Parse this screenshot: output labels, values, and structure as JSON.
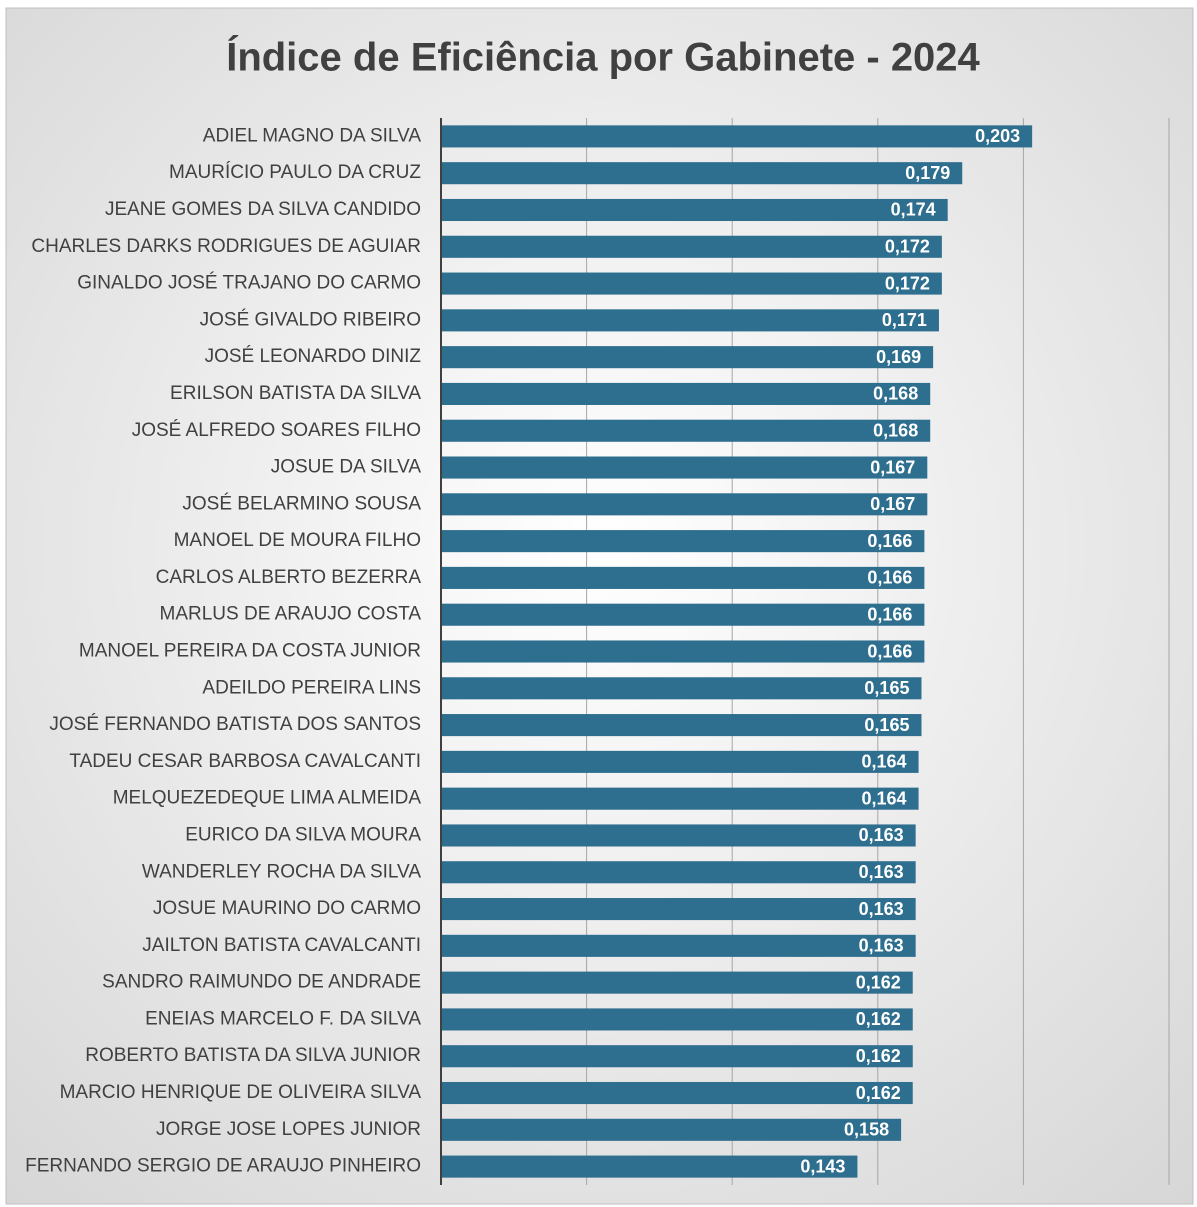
{
  "chart_data": {
    "type": "barh",
    "title": "Índice de Eficiência por Gabinete - 2024",
    "categories": [
      "ADIEL MAGNO DA SILVA",
      "MAURÍCIO PAULO DA CRUZ",
      "JEANE GOMES DA SILVA CANDIDO",
      "CHARLES DARKS RODRIGUES DE AGUIAR",
      "GINALDO JOSÉ TRAJANO DO CARMO",
      "JOSÉ GIVALDO RIBEIRO",
      "JOSÉ LEONARDO DINIZ",
      "ERILSON BATISTA DA SILVA",
      "JOSÉ ALFREDO SOARES FILHO",
      "JOSUE DA SILVA",
      "JOSÉ BELARMINO SOUSA",
      "MANOEL DE MOURA FILHO",
      "CARLOS ALBERTO BEZERRA",
      "MARLUS DE ARAUJO COSTA",
      "MANOEL PEREIRA DA COSTA JUNIOR",
      "ADEILDO PEREIRA LINS",
      "JOSÉ FERNANDO BATISTA DOS SANTOS",
      "TADEU CESAR BARBOSA CAVALCANTI",
      "MELQUEZEDEQUE LIMA ALMEIDA",
      "EURICO DA SILVA MOURA",
      "WANDERLEY ROCHA DA SILVA",
      "JOSUE MAURINO DO CARMO",
      "JAILTON BATISTA CAVALCANTI",
      "SANDRO RAIMUNDO DE ANDRADE",
      "ENEIAS MARCELO F. DA SILVA",
      "ROBERTO BATISTA DA SILVA JUNIOR",
      "MARCIO HENRIQUE DE OLIVEIRA SILVA",
      "JORGE JOSE LOPES JUNIOR",
      "FERNANDO SERGIO DE ARAUJO PINHEIRO"
    ],
    "values": [
      0.203,
      0.179,
      0.174,
      0.172,
      0.172,
      0.171,
      0.169,
      0.168,
      0.168,
      0.167,
      0.167,
      0.166,
      0.166,
      0.166,
      0.166,
      0.165,
      0.165,
      0.164,
      0.164,
      0.163,
      0.163,
      0.163,
      0.163,
      0.162,
      0.162,
      0.162,
      0.162,
      0.158,
      0.143
    ],
    "value_labels": [
      "0,203",
      "0,179",
      "0,174",
      "0,172",
      "0,172",
      "0,171",
      "0,169",
      "0,168",
      "0,168",
      "0,167",
      "0,167",
      "0,166",
      "0,166",
      "0,166",
      "0,166",
      "0,165",
      "0,165",
      "0,164",
      "0,164",
      "0,163",
      "0,163",
      "0,163",
      "0,163",
      "0,162",
      "0,162",
      "0,162",
      "0,162",
      "0,158",
      "0,143"
    ],
    "color": "#2e6e8e",
    "xlim": [
      0,
      0.25
    ],
    "xticks": [
      0,
      0.05,
      0.1,
      0.15,
      0.2,
      0.25
    ],
    "grid": true
  }
}
